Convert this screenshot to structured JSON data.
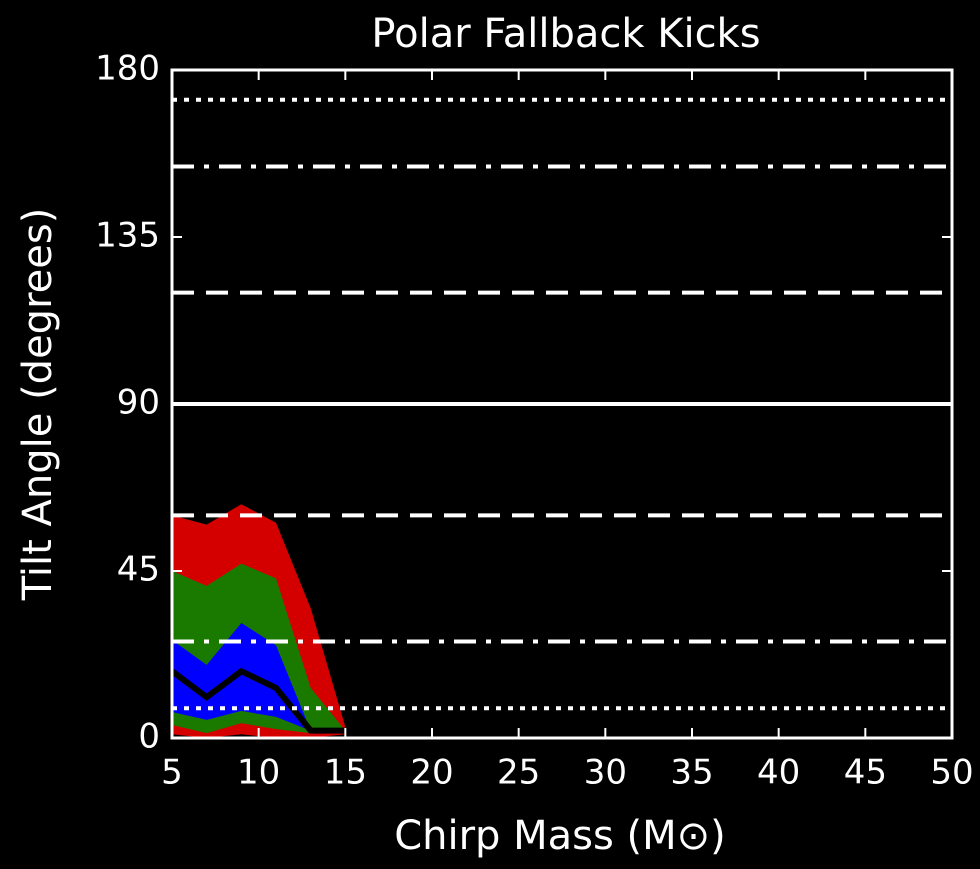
{
  "chart_data": {
    "type": "band",
    "title": "Polar Fallback Kicks",
    "xlabel": "Chirp Mass (M⊙)",
    "ylabel": "Tilt Angle (degrees)",
    "x": [
      5,
      7,
      9,
      11,
      13,
      15
    ],
    "bands": [
      {
        "color": "#d40000",
        "upper": [
          60,
          57.5,
          63,
          58,
          35,
          3
        ],
        "lower": [
          1,
          0,
          1,
          0,
          0,
          1
        ]
      },
      {
        "color": "#1a7a00",
        "upper": [
          45,
          41,
          47,
          43,
          13.5,
          2
        ],
        "lower": [
          3.5,
          1.3,
          4,
          2.4,
          1.3,
          2
        ]
      },
      {
        "color": "#0000ff",
        "upper": [
          26.4,
          19.7,
          31,
          25,
          2,
          null
        ],
        "lower": [
          7,
          4.9,
          7.3,
          5.7,
          2,
          null
        ]
      }
    ],
    "series": [
      {
        "color": "#000000",
        "values": [
          18,
          11,
          18,
          13.5,
          2,
          2
        ]
      }
    ],
    "hlines": [
      {
        "value": 172,
        "style": "dotted"
      },
      {
        "value": 154,
        "style": "dashdot"
      },
      {
        "value": 120,
        "style": "dashed"
      },
      {
        "value": 90,
        "style": "solid"
      },
      {
        "value": 60,
        "style": "dashed"
      },
      {
        "value": 26,
        "style": "dashdot"
      },
      {
        "value": 8,
        "style": "dotted"
      }
    ],
    "hline_color": "#ffffff",
    "xlim": [
      5,
      50
    ],
    "xticks": [
      5,
      10,
      15,
      20,
      25,
      30,
      35,
      40,
      45,
      50
    ],
    "ylim": [
      0,
      180
    ],
    "yticks": [
      0,
      45,
      90,
      135,
      180
    ]
  }
}
